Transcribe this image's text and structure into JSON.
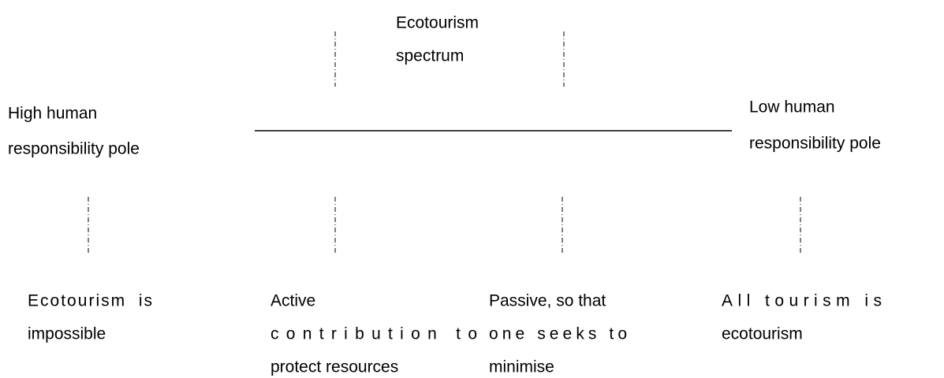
{
  "title": [
    "Ecotourism",
    "spectrum"
  ],
  "poles": [
    {
      "lines": [
        "High human",
        "responsibility pole"
      ]
    },
    {
      "lines": [
        "Low human",
        "responsibility pole"
      ]
    }
  ],
  "positions": [
    {
      "lines": [
        "Ecotourism  is",
        "impossible"
      ]
    },
    {
      "lines": [
        "Active",
        "contribution to",
        "protect resources"
      ]
    },
    {
      "lines": [
        "Passive, so that",
        "one seeks to",
        "minimise"
      ]
    },
    {
      "lines": [
        "All tourism is",
        "ecotourism"
      ]
    }
  ]
}
